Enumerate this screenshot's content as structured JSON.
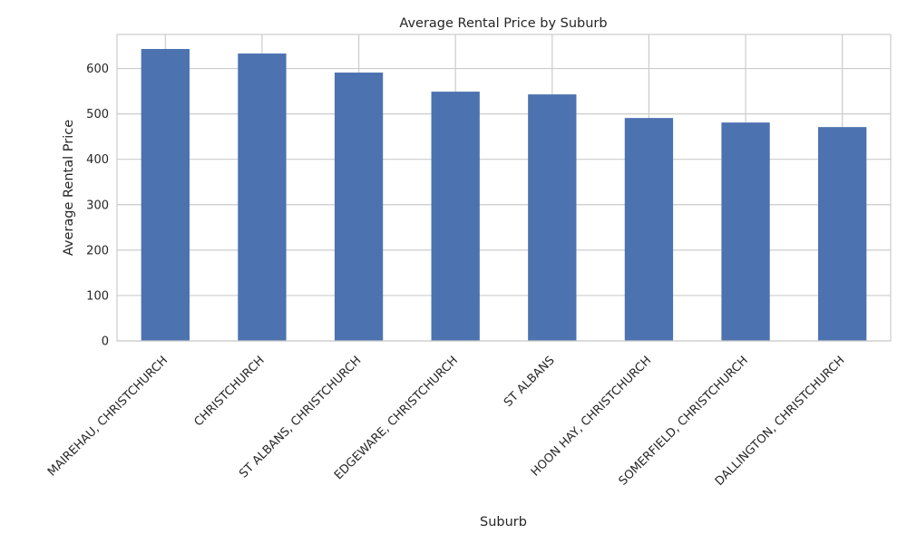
{
  "chart_data": {
    "type": "bar",
    "title": "Average Rental Price by Suburb",
    "xlabel": "Suburb",
    "ylabel": "Average Rental Price",
    "categories": [
      "MAIREHAU, CHRISTCHURCH",
      "CHRISTCHURCH",
      "ST ALBANS, CHRISTCHURCH",
      "EDGEWARE, CHRISTCHURCH",
      "ST ALBANS",
      "HOON HAY, CHRISTCHURCH",
      "SOMERFIELD, CHRISTCHURCH",
      "DALLINGTON, CHRISTCHURCH"
    ],
    "values": [
      643,
      633,
      591,
      549,
      543,
      491,
      481,
      471
    ],
    "ylim": [
      0,
      675
    ],
    "yticks": [
      0,
      100,
      200,
      300,
      400,
      500,
      600
    ],
    "grid": true,
    "bar_color": "#4c72b0",
    "grid_color": "#cccccc",
    "spine_color": "#cccccc"
  }
}
